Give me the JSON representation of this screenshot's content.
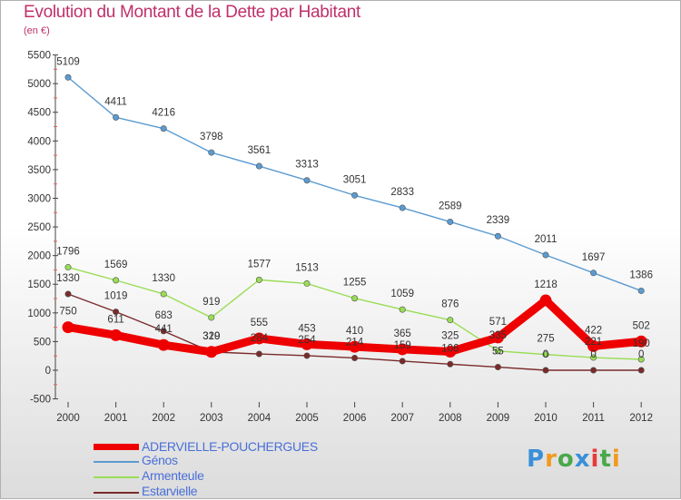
{
  "header": {
    "title": "Evolution du Montant de la Dette par Habitant",
    "unit": "(en €)"
  },
  "chart_data": {
    "type": "line",
    "title": "Evolution du Montant de la Dette par Habitant",
    "subtitle": "(en €)",
    "xlabel": "",
    "ylabel": "",
    "x": [
      "2000",
      "2001",
      "2002",
      "2003",
      "2004",
      "2005",
      "2006",
      "2007",
      "2008",
      "2009",
      "2010",
      "2011",
      "2012"
    ],
    "ylim": [
      -500,
      5500
    ],
    "yticks": [
      -500,
      0,
      500,
      1000,
      1500,
      2000,
      2500,
      3000,
      3500,
      4000,
      4500,
      5000,
      5500
    ],
    "grid": false,
    "legend_position": "bottom-left",
    "series": [
      {
        "name": "ADERVIELLE-POUCHERGUES",
        "color": "#ee0000",
        "values": [
          750,
          611,
          441,
          320,
          555,
          453,
          410,
          365,
          325,
          571,
          1218,
          422,
          502
        ],
        "labels": [
          "750",
          "611",
          "441",
          "320",
          "555",
          "453",
          "410",
          "365",
          "325",
          "571",
          "1218",
          "422",
          "502"
        ]
      },
      {
        "name": "Génos",
        "color": "#5b9bd1",
        "values": [
          5109,
          4411,
          4216,
          3798,
          3561,
          3313,
          3051,
          2833,
          2589,
          2339,
          2011,
          1697,
          1386
        ],
        "labels": [
          "5109",
          "4411",
          "4216",
          "3798",
          "3561",
          "3313",
          "3051",
          "2833",
          "2589",
          "2339",
          "2011",
          "1697",
          "1386"
        ]
      },
      {
        "name": "Armenteule",
        "color": "#99dd55",
        "values": [
          1796,
          1569,
          1330,
          919,
          1577,
          1513,
          1255,
          1059,
          876,
          335,
          275,
          221,
          190
        ],
        "labels": [
          "1796",
          "1569",
          "1330",
          "919",
          "1577",
          "1513",
          "1255",
          "1059",
          "876",
          "335",
          "275",
          "221",
          "190"
        ]
      },
      {
        "name": "Estarvielle",
        "color": "#7a2a2a",
        "values": [
          1330,
          1019,
          683,
          319,
          284,
          254,
          214,
          159,
          106,
          55,
          0,
          0,
          0
        ],
        "labels": [
          "1330",
          "1019",
          "683",
          "319",
          "284",
          "254",
          "214",
          "159",
          "106",
          "55",
          "0",
          "0",
          "0"
        ]
      }
    ]
  },
  "legend": {
    "items": [
      "ADERVIELLE-POUCHERGUES",
      "Génos",
      "Armenteule",
      "Estarvielle"
    ]
  },
  "logo": {
    "text": "Proxiti",
    "letter_colors": [
      "#3a8fd8",
      "#f29a1e",
      "#4aa84a",
      "#3a8fd8",
      "#e83a3a",
      "#4aa84a",
      "#f29a1e"
    ]
  }
}
